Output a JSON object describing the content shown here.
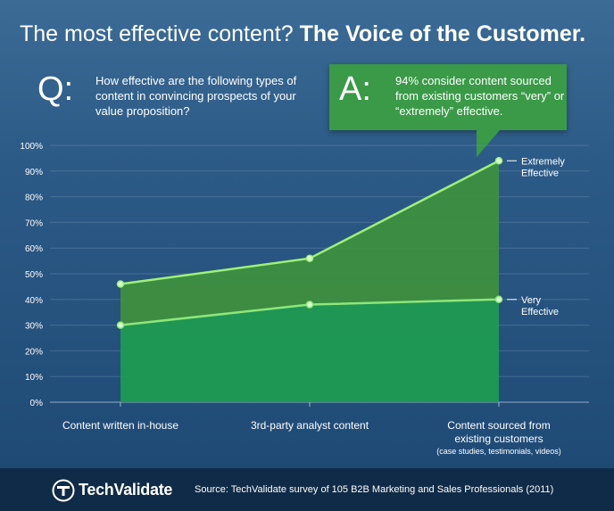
{
  "title": {
    "regular": "The most effective content?",
    "bold": "The Voice of the Customer."
  },
  "question": {
    "letter": "Q:",
    "text": "How effective are the following types of content in convincing prospects of your value proposition?"
  },
  "answer": {
    "letter": "A:",
    "text": "94% consider content sourced from existing customers “very” or “extremely” effective."
  },
  "colors": {
    "extremely_fill": "#3e8f3f",
    "very_fill": "#1f9a52",
    "extremely_line": "#9ef07a",
    "very_line": "#8fe67a",
    "answer_box": "#3a9a47"
  },
  "chart_data": {
    "type": "area",
    "ylim": [
      0,
      100
    ],
    "y_ticks": [
      "0%",
      "10%",
      "20%",
      "30%",
      "40%",
      "50%",
      "60%",
      "70%",
      "80%",
      "90%",
      "100%"
    ],
    "categories": [
      "Content written in-house",
      "3rd-party analyst content",
      "Content sourced from existing customers"
    ],
    "category_sub": [
      "",
      "",
      "(case studies, testimonials, videos)"
    ],
    "series": [
      {
        "name": "Extremely Effective",
        "values": [
          46,
          56,
          94
        ]
      },
      {
        "name": "Very Effective",
        "values": [
          30,
          38,
          40
        ]
      }
    ],
    "grid": true
  },
  "footer": {
    "brand": "TechValidate",
    "source": "Source: TechValidate survey of 105 B2B Marketing and Sales Professionals (2011)"
  }
}
